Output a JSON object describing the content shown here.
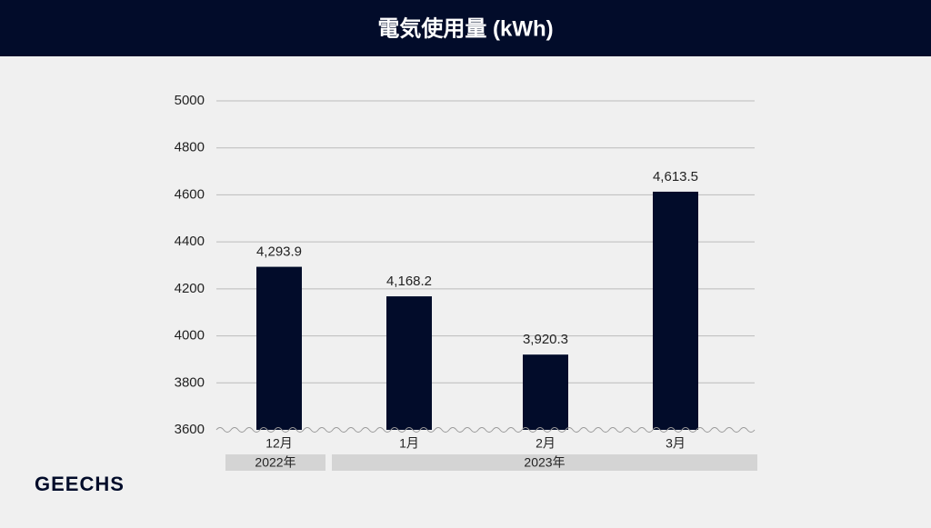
{
  "chart_data": {
    "type": "bar",
    "title": "電気使用量 (kWh)",
    "categories": [
      "12月",
      "1月",
      "2月",
      "3月"
    ],
    "values": [
      4293.9,
      4168.2,
      3920.3,
      4613.5
    ],
    "value_labels": [
      "4,293.9",
      "4,168.2",
      "3,920.3",
      "4,613.5"
    ],
    "color": "#020c2a",
    "ylim": [
      3600,
      5000
    ],
    "yticks": [
      3600,
      3800,
      4000,
      4200,
      4400,
      4600,
      4800,
      5000
    ],
    "grid": true,
    "x_groups": [
      "2022年",
      "2023年"
    ]
  },
  "brand": "GEECHS"
}
